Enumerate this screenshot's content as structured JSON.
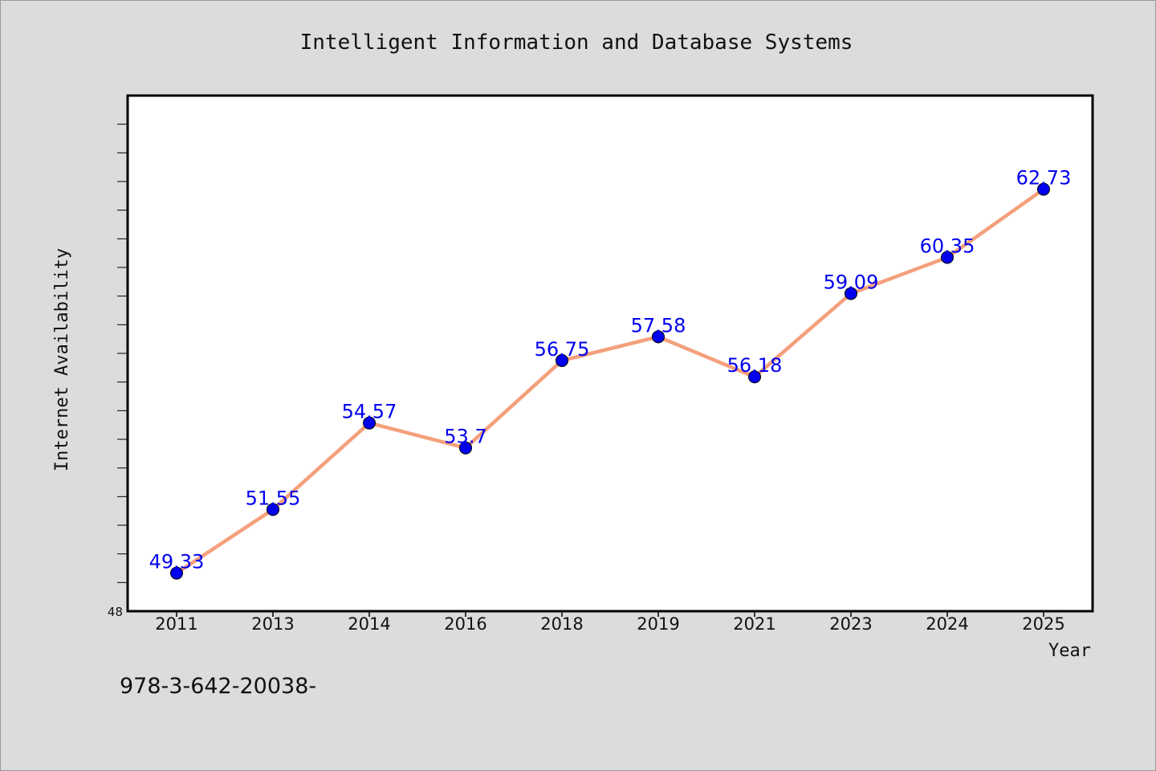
{
  "chart_data": {
    "type": "line",
    "title": "Intelligent Information and Database Systems",
    "xlabel": "Year",
    "ylabel": "Internet Availability",
    "categories": [
      "2011",
      "2013",
      "2014",
      "2016",
      "2018",
      "2019",
      "2021",
      "2023",
      "2024",
      "2025"
    ],
    "series": [
      {
        "values": [
          49.33,
          51.55,
          54.57,
          53.7,
          56.75,
          57.58,
          56.18,
          59.09,
          60.35,
          62.73
        ],
        "labels": [
          "49.33",
          "51.55",
          "54.57",
          "53.7",
          "56.75",
          "57.58",
          "56.18",
          "59.09",
          "60.35",
          "62.73"
        ],
        "line_color": "#f4a07c",
        "marker_color": "#0000ee"
      }
    ],
    "ylim": [
      48,
      66
    ],
    "yticks_labeled": [
      "48"
    ],
    "grid": false,
    "legend": "none",
    "plot_background": "#ffffff",
    "figure_background": "#dcdcdc"
  },
  "footer_text": "978-3-642-20038-"
}
